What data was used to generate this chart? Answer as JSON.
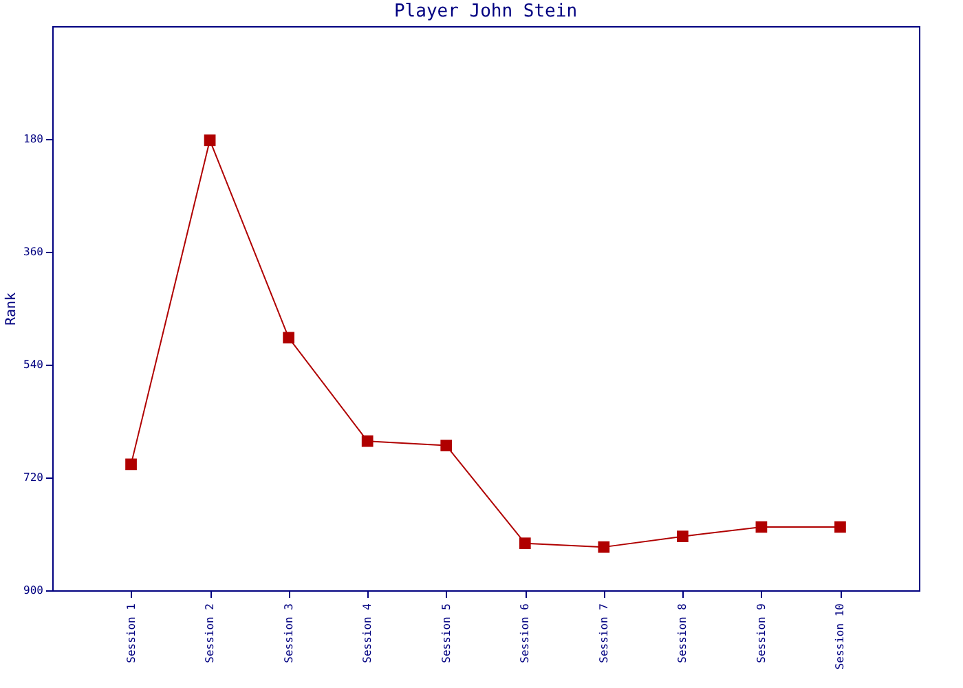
{
  "chart_data": {
    "type": "line",
    "title": "Player John Stein",
    "ylabel": "Rank",
    "categories": [
      "Session 1",
      "Session 2",
      "Session 3",
      "Session 4",
      "Session 5",
      "Session 6",
      "Session 7",
      "Session 8",
      "Session 9",
      "Session 10"
    ],
    "series": [
      {
        "color": "#b00000",
        "values": [
          699,
          182,
          497,
          662,
          669,
          825,
          831,
          814,
          799,
          799
        ]
      }
    ],
    "ylim": [
      900,
      0
    ],
    "yticks": [
      180,
      360,
      540,
      720,
      900
    ],
    "grid": false,
    "marker": "square",
    "line_style": "solid"
  }
}
